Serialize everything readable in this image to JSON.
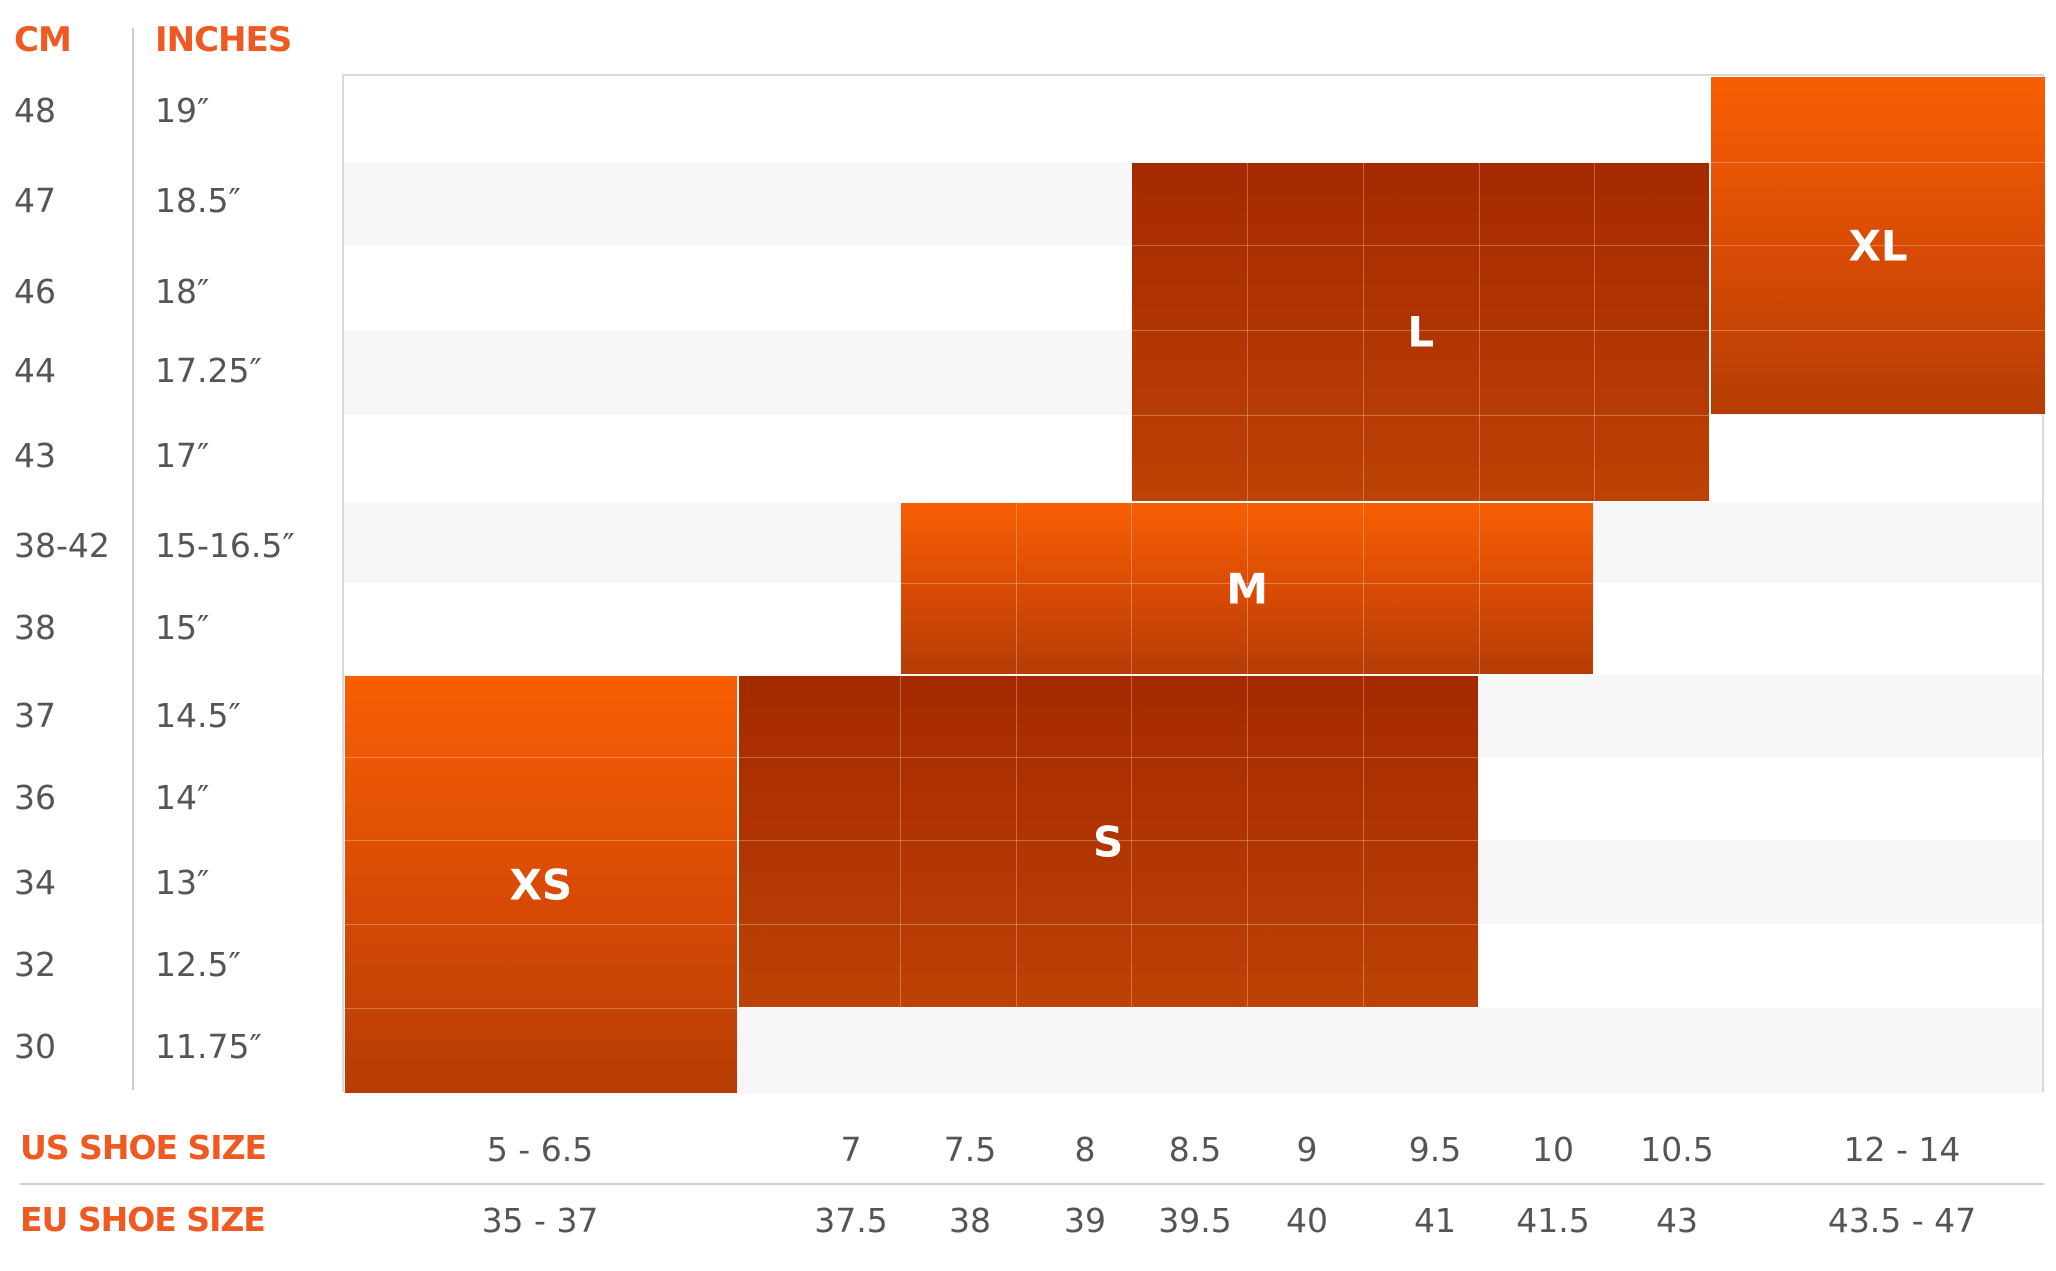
{
  "chart_data": {
    "type": "table",
    "headers": {
      "cm": "CM",
      "inches": "INCHES"
    },
    "rows": [
      {
        "cm": "48",
        "in": "19″"
      },
      {
        "cm": "47",
        "in": "18.5″"
      },
      {
        "cm": "46",
        "in": "18″"
      },
      {
        "cm": "44",
        "in": "17.25″"
      },
      {
        "cm": "43",
        "in": "17″"
      },
      {
        "cm": "38-42",
        "in": "15-16.5″"
      },
      {
        "cm": "38",
        "in": "15″"
      },
      {
        "cm": "37",
        "in": "14.5″"
      },
      {
        "cm": "36",
        "in": "14″"
      },
      {
        "cm": "34",
        "in": "13″"
      },
      {
        "cm": "32",
        "in": "12.5″"
      },
      {
        "cm": "30",
        "in": "11.75″"
      }
    ],
    "us_label": "US SHOE SIZE",
    "eu_label": "EU SHOE SIZE",
    "columns": [
      {
        "us": "5 - 6.5",
        "eu": "35 - 37"
      },
      {
        "us": "7",
        "eu": "37.5"
      },
      {
        "us": "7.5",
        "eu": "38"
      },
      {
        "us": "8",
        "eu": "39"
      },
      {
        "us": "8.5",
        "eu": "39.5"
      },
      {
        "us": "9",
        "eu": "40"
      },
      {
        "us": "9.5",
        "eu": "41"
      },
      {
        "us": "10",
        "eu": "41.5"
      },
      {
        "us": "10.5",
        "eu": "43"
      },
      {
        "us": "12 - 14",
        "eu": "43.5 - 47"
      }
    ],
    "sizes": [
      {
        "label": "XS",
        "us_from": "5 - 6.5",
        "us_to": "5 - 6.5",
        "cm_from": "37",
        "cm_to": "30"
      },
      {
        "label": "S",
        "us_from": "7",
        "us_to": "9.5",
        "cm_from": "37",
        "cm_to": "32"
      },
      {
        "label": "M",
        "us_from": "7.5",
        "us_to": "10",
        "cm_from": "38-42",
        "cm_to": "38"
      },
      {
        "label": "L",
        "us_from": "8.5",
        "us_to": "10.5",
        "cm_from": "47",
        "cm_to": "43"
      },
      {
        "label": "XL",
        "us_from": "12 - 14",
        "us_to": "12 - 14",
        "cm_from": "48",
        "cm_to": "44"
      }
    ],
    "colors": {
      "accent": "#f05a22",
      "zone_light": "#f85f03",
      "zone_dark": "#a42900",
      "text": "#555555"
    }
  }
}
